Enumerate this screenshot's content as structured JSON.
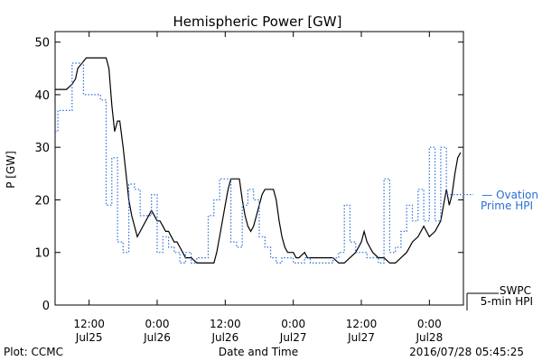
{
  "chart_data": {
    "type": "line",
    "title": "Hemispheric Power [GW]",
    "ylabel": "P [GW]",
    "xlabel": "Date and Time",
    "ylim": [
      0,
      52
    ],
    "xlim": [
      0,
      72
    ],
    "x_unit": "hours since 2016-07-25 06:00 UT",
    "yticks": [
      0,
      10,
      20,
      30,
      40,
      50
    ],
    "xticks": [
      {
        "x": 6,
        "time": "12:00",
        "date": "Jul25"
      },
      {
        "x": 18,
        "time": "0:00",
        "date": "Jul26"
      },
      {
        "x": 30,
        "time": "12:00",
        "date": "Jul26"
      },
      {
        "x": 42,
        "time": "0:00",
        "date": "Jul27"
      },
      {
        "x": 54,
        "time": "12:00",
        "date": "Jul27"
      },
      {
        "x": 66,
        "time": "0:00",
        "date": "Jul28"
      }
    ],
    "grid": false,
    "series": [
      {
        "name": "SWPC 5-min HPI",
        "color": "#000000",
        "style": "solid",
        "points": [
          [
            0,
            41
          ],
          [
            2,
            41
          ],
          [
            3,
            42
          ],
          [
            3.6,
            43
          ],
          [
            4,
            45
          ],
          [
            5.5,
            47
          ],
          [
            9,
            47
          ],
          [
            9.5,
            45
          ],
          [
            10,
            38
          ],
          [
            10.5,
            33
          ],
          [
            11,
            35
          ],
          [
            11.4,
            35
          ],
          [
            12,
            30
          ],
          [
            12.5,
            25
          ],
          [
            13,
            20
          ],
          [
            13.5,
            17
          ],
          [
            14,
            15
          ],
          [
            14.5,
            13
          ],
          [
            15,
            14
          ],
          [
            15.5,
            15
          ],
          [
            16,
            16
          ],
          [
            16.5,
            17
          ],
          [
            17,
            18
          ],
          [
            17.5,
            17
          ],
          [
            18,
            16
          ],
          [
            18.5,
            16
          ],
          [
            19,
            15
          ],
          [
            19.5,
            14
          ],
          [
            20,
            14
          ],
          [
            20.5,
            13
          ],
          [
            21,
            12
          ],
          [
            21.5,
            12
          ],
          [
            22,
            11
          ],
          [
            22.5,
            10
          ],
          [
            23,
            9
          ],
          [
            24,
            9
          ],
          [
            25,
            8
          ],
          [
            28,
            8
          ],
          [
            28.5,
            10
          ],
          [
            29,
            13
          ],
          [
            29.5,
            16
          ],
          [
            30,
            19
          ],
          [
            30.5,
            22
          ],
          [
            31,
            24
          ],
          [
            32.5,
            24
          ],
          [
            33,
            20
          ],
          [
            33.5,
            17
          ],
          [
            34,
            15
          ],
          [
            34.5,
            14
          ],
          [
            35,
            15
          ],
          [
            35.5,
            17
          ],
          [
            36,
            19
          ],
          [
            36.5,
            21
          ],
          [
            37,
            22
          ],
          [
            38.5,
            22
          ],
          [
            39,
            20
          ],
          [
            39.5,
            16
          ],
          [
            40,
            13
          ],
          [
            40.5,
            11
          ],
          [
            41,
            10
          ],
          [
            41.5,
            10
          ],
          [
            42,
            10
          ],
          [
            42.5,
            9
          ],
          [
            43,
            9
          ],
          [
            44,
            10
          ],
          [
            44.5,
            9
          ],
          [
            45,
            9
          ],
          [
            46,
            9
          ],
          [
            47,
            9
          ],
          [
            48,
            9
          ],
          [
            49,
            9
          ],
          [
            50,
            8
          ],
          [
            51,
            8
          ],
          [
            52,
            9
          ],
          [
            53,
            10
          ],
          [
            53.5,
            11
          ],
          [
            54,
            12
          ],
          [
            54.5,
            14
          ],
          [
            55,
            12
          ],
          [
            55.5,
            11
          ],
          [
            56,
            10
          ],
          [
            57,
            9
          ],
          [
            58,
            9
          ],
          [
            59,
            8
          ],
          [
            60,
            8
          ],
          [
            61,
            9
          ],
          [
            62,
            10
          ],
          [
            62.5,
            11
          ],
          [
            63,
            12
          ],
          [
            64,
            13
          ],
          [
            65,
            15
          ],
          [
            65.5,
            14
          ],
          [
            66,
            13
          ],
          [
            67,
            14
          ],
          [
            68,
            16
          ],
          [
            68.5,
            19
          ],
          [
            69,
            22
          ],
          [
            69.5,
            19
          ],
          [
            70,
            21
          ],
          [
            70.5,
            25
          ],
          [
            71,
            28
          ],
          [
            71.5,
            29
          ]
        ]
      },
      {
        "name": "Ovation Prime HPI",
        "color": "#2a6fd6",
        "style": "dotted",
        "points": [
          [
            0,
            33
          ],
          [
            0.5,
            33
          ],
          [
            0.5,
            37
          ],
          [
            3,
            37
          ],
          [
            3,
            46
          ],
          [
            5,
            46
          ],
          [
            5,
            40
          ],
          [
            8,
            40
          ],
          [
            8,
            39
          ],
          [
            9,
            39
          ],
          [
            9,
            19
          ],
          [
            10,
            19
          ],
          [
            10,
            28
          ],
          [
            11,
            28
          ],
          [
            11,
            12
          ],
          [
            12,
            12
          ],
          [
            12,
            10
          ],
          [
            13,
            10
          ],
          [
            13,
            23
          ],
          [
            14,
            23
          ],
          [
            14,
            22
          ],
          [
            15,
            22
          ],
          [
            15,
            17
          ],
          [
            16,
            17
          ],
          [
            16,
            17
          ],
          [
            17,
            17
          ],
          [
            17,
            21
          ],
          [
            18,
            21
          ],
          [
            18,
            10
          ],
          [
            19,
            10
          ],
          [
            19,
            13
          ],
          [
            20,
            13
          ],
          [
            20,
            11
          ],
          [
            21,
            11
          ],
          [
            21,
            10
          ],
          [
            22,
            10
          ],
          [
            22,
            8
          ],
          [
            23,
            8
          ],
          [
            23,
            10
          ],
          [
            24,
            10
          ],
          [
            24,
            8
          ],
          [
            25,
            8
          ],
          [
            25,
            9
          ],
          [
            26,
            9
          ],
          [
            26,
            9
          ],
          [
            27,
            9
          ],
          [
            27,
            17
          ],
          [
            28,
            17
          ],
          [
            28,
            20
          ],
          [
            29,
            20
          ],
          [
            29,
            24
          ],
          [
            30,
            24
          ],
          [
            30,
            24
          ],
          [
            31,
            24
          ],
          [
            31,
            12
          ],
          [
            32,
            12
          ],
          [
            32,
            11
          ],
          [
            33,
            11
          ],
          [
            33,
            19
          ],
          [
            34,
            19
          ],
          [
            34,
            22
          ],
          [
            35,
            22
          ],
          [
            35,
            20
          ],
          [
            36,
            20
          ],
          [
            36,
            13
          ],
          [
            37,
            13
          ],
          [
            37,
            11
          ],
          [
            38,
            11
          ],
          [
            38,
            9
          ],
          [
            39,
            9
          ],
          [
            39,
            8
          ],
          [
            40,
            8
          ],
          [
            40,
            9
          ],
          [
            42,
            9
          ],
          [
            42,
            8
          ],
          [
            44,
            8
          ],
          [
            44,
            9
          ],
          [
            45,
            9
          ],
          [
            45,
            8
          ],
          [
            49,
            8
          ],
          [
            49,
            9
          ],
          [
            50,
            9
          ],
          [
            50,
            10
          ],
          [
            51,
            10
          ],
          [
            51,
            19
          ],
          [
            52,
            19
          ],
          [
            52,
            12
          ],
          [
            53,
            12
          ],
          [
            53,
            10
          ],
          [
            55,
            10
          ],
          [
            55,
            9
          ],
          [
            57,
            9
          ],
          [
            57,
            8
          ],
          [
            58,
            8
          ],
          [
            58,
            24
          ],
          [
            59,
            24
          ],
          [
            59,
            10
          ],
          [
            60,
            10
          ],
          [
            60,
            11
          ],
          [
            61,
            11
          ],
          [
            61,
            14
          ],
          [
            62,
            14
          ],
          [
            62,
            19
          ],
          [
            63,
            19
          ],
          [
            63,
            16
          ],
          [
            64,
            16
          ],
          [
            64,
            22
          ],
          [
            65,
            22
          ],
          [
            65,
            16
          ],
          [
            66,
            16
          ],
          [
            66,
            30
          ],
          [
            67,
            30
          ],
          [
            67,
            16
          ],
          [
            68,
            16
          ],
          [
            68,
            30
          ],
          [
            69,
            30
          ],
          [
            69,
            21
          ],
          [
            72,
            21
          ]
        ]
      }
    ],
    "legend": [
      {
        "line1": "— Ovation",
        "line2": "Prime HPI",
        "color": "#2a6fd6"
      },
      {
        "line1": "SWPC",
        "line2": "5-min HPI",
        "color": "#000000"
      }
    ],
    "legend_placement": "right"
  },
  "footer": {
    "left": "Plot: CCMC",
    "right": "2016/07/28 05:45:25"
  }
}
